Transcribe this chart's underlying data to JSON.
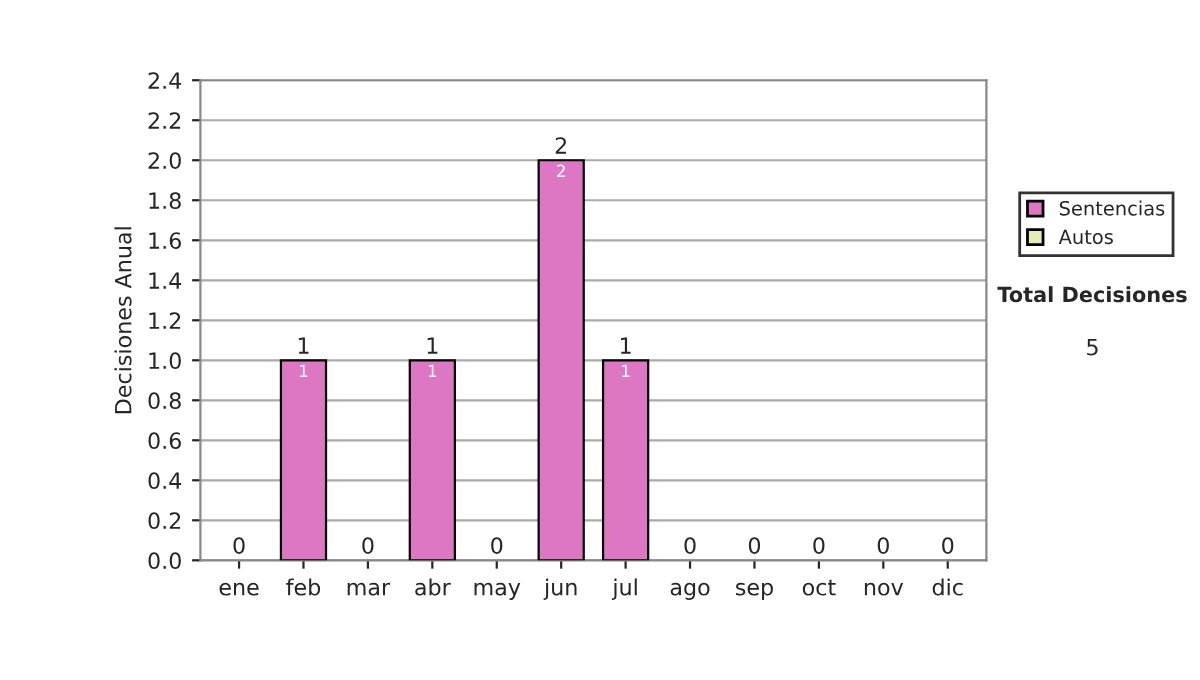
{
  "chart_data": {
    "type": "bar",
    "stacked": true,
    "ylabel": "Decisiones Anual",
    "categories": [
      "ene",
      "feb",
      "mar",
      "abr",
      "may",
      "jun",
      "jul",
      "ago",
      "sep",
      "oct",
      "nov",
      "dic"
    ],
    "series": [
      {
        "name": "Sentencias",
        "color": "#dd77c4",
        "values": [
          0,
          1,
          0,
          1,
          0,
          2,
          1,
          0,
          0,
          0,
          0,
          0
        ],
        "value_labels": [
          null,
          "1",
          null,
          "1",
          null,
          "2",
          "1",
          null,
          null,
          null,
          null,
          null
        ]
      },
      {
        "name": "Autos",
        "color": "#e4eeb4",
        "values": [
          0,
          0,
          0,
          0,
          0,
          0,
          0,
          0,
          0,
          0,
          0,
          0
        ]
      }
    ],
    "totals": [
      "0",
      "1",
      "0",
      "1",
      "0",
      "2",
      "1",
      "0",
      "0",
      "0",
      "0",
      "0"
    ],
    "ylim": [
      0,
      2.4
    ],
    "yticks": [
      {
        "value": 0,
        "label": "0.0"
      },
      0.2,
      0.4,
      0.6,
      0.8,
      {
        "value": 1,
        "label": "1.0"
      },
      1.2,
      1.4,
      1.6,
      1.8,
      {
        "value": 2,
        "label": "2.0"
      },
      2.2,
      2.4
    ],
    "grid": "y",
    "legend": "right",
    "annotations": [
      "Total Decisiones",
      "5"
    ]
  }
}
